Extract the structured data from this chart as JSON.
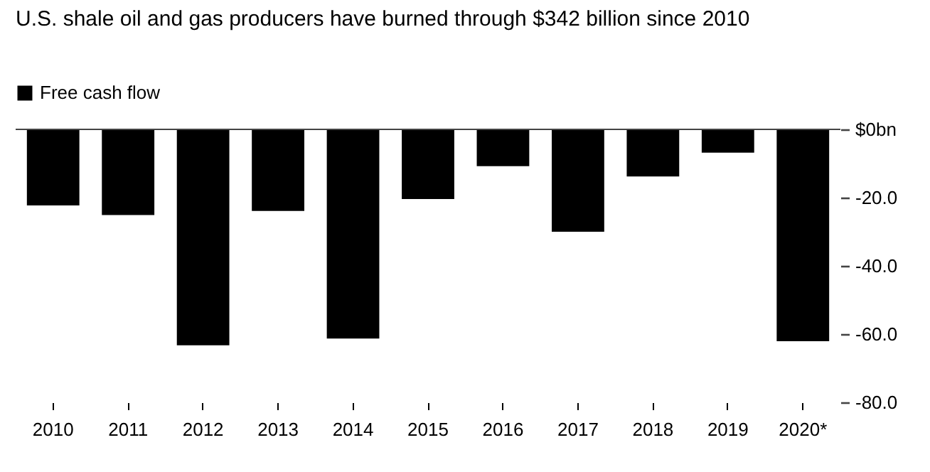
{
  "chart_data": {
    "type": "bar",
    "title": "U.S. shale oil and gas producers have burned through $342 billion since 2010",
    "categories": [
      "2010",
      "2011",
      "2012",
      "2013",
      "2014",
      "2015",
      "2016",
      "2017",
      "2018",
      "2019",
      "2020*"
    ],
    "series": [
      {
        "name": "Free cash flow",
        "color": "#000000",
        "values": [
          -22.3,
          -25.1,
          -63.3,
          -23.9,
          -61.3,
          -20.4,
          -10.8,
          -30.0,
          -13.8,
          -6.8,
          -62.1
        ]
      }
    ],
    "ylim": [
      -80,
      0
    ],
    "yticks": [
      {
        "value": 0,
        "label": "$0bn"
      },
      {
        "value": -20,
        "label": "-20.0"
      },
      {
        "value": -40,
        "label": "-40.0"
      },
      {
        "value": -60,
        "label": "-60.0"
      },
      {
        "value": -80,
        "label": "-80.0"
      }
    ],
    "legend": "top left",
    "grid": false
  }
}
